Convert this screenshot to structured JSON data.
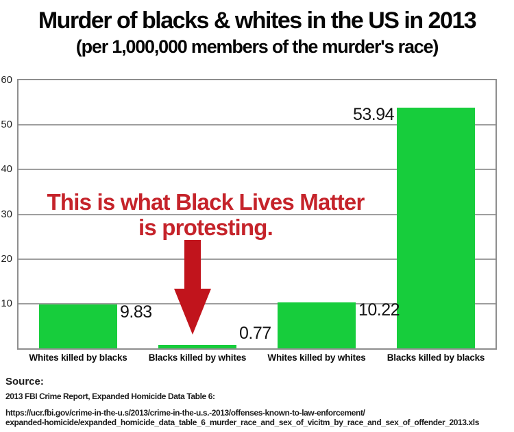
{
  "title": "Murder of blacks & whites in the US in 2013",
  "subtitle": "(per 1,000,000 members of the murder's race)",
  "chart_data": {
    "type": "bar",
    "categories": [
      "Whites killed by blacks",
      "Blacks killed by whites",
      "Whites killed by whites",
      "Blacks killed by blacks"
    ],
    "values": [
      9.83,
      0.77,
      10.22,
      53.94
    ],
    "value_labels": [
      "9.83",
      "0.77",
      "10.22",
      "53.94"
    ],
    "label_side": [
      "right",
      "right",
      "right",
      "left"
    ],
    "ylim": [
      0,
      60
    ],
    "yticks": [
      10,
      20,
      30,
      40,
      50,
      60
    ],
    "grid": true,
    "legend": "none",
    "xlabel": "",
    "ylabel": "",
    "bar_color": "#17cd3c",
    "annotation": {
      "line1": "This is what Black Lives Matter",
      "line2": "is protesting.",
      "text_color": "#c5232a",
      "arrow_color": "#c1141c",
      "arrow_points_at": "Blacks killed by whites"
    }
  },
  "source": {
    "heading": "Source:",
    "reference": "2013 FBI Crime Report, Expanded Homicide Data Table 6:",
    "url_line1": "https://ucr.fbi.gov/crime-in-the-u.s/2013/crime-in-the-u.s.-2013/offenses-known-to-law-enforcement/",
    "url_line2": "expanded-homicide/expanded_homicide_data_table_6_murder_race_and_sex_of_vicitm_by_race_and_sex_of_offender_2013.xls"
  }
}
